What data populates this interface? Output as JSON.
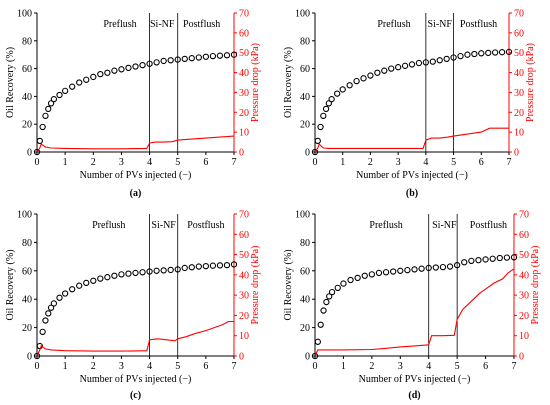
{
  "figure": {
    "left_axis_color": "#000000",
    "right_axis_color": "#ff0000"
  },
  "chart_data": [
    {
      "type": "line",
      "panel_label": "(a)",
      "xlabel": "Number of PVs injected (−)",
      "ylabel": "Oil Recovery (%)",
      "y2label": "Pressure drop (kPa)",
      "xlim": [
        0,
        7
      ],
      "ylim": [
        0,
        100
      ],
      "y2lim": [
        0,
        70
      ],
      "xticks": [
        "0",
        "1",
        "2",
        "3",
        "4",
        "5",
        "6",
        "7"
      ],
      "yticks": [
        "0",
        "20",
        "40",
        "60",
        "80",
        "100"
      ],
      "y2ticks": [
        "0",
        "10",
        "20",
        "30",
        "40",
        "50",
        "60",
        "70"
      ],
      "stage_boundaries": [
        4,
        5
      ],
      "stage_labels": [
        {
          "text": "Preflush",
          "x": 2.95
        },
        {
          "text": "Si-NF",
          "x": 4.45
        },
        {
          "text": "Postflush",
          "x": 5.85
        }
      ],
      "series": [
        {
          "axis": "left",
          "marker": "circle",
          "color": "#000000",
          "x": [
            0,
            0.1,
            0.2,
            0.3,
            0.4,
            0.5,
            0.6,
            0.8,
            1,
            1.25,
            1.5,
            1.75,
            2,
            2.25,
            2.5,
            2.75,
            3,
            3.25,
            3.5,
            3.75,
            4,
            4.25,
            4.5,
            4.75,
            5,
            5.25,
            5.5,
            5.75,
            6,
            6.25,
            6.5,
            6.75,
            7
          ],
          "y": [
            0,
            8,
            18,
            26,
            31,
            35,
            38,
            41,
            44,
            47,
            50,
            52,
            54,
            56,
            57,
            58.5,
            59.5,
            60.5,
            61.5,
            62.5,
            63.5,
            64.5,
            65.5,
            66,
            66.5,
            67,
            67.5,
            68,
            68.5,
            69,
            69.3,
            69.6,
            70
          ]
        },
        {
          "axis": "right",
          "marker": "line",
          "color": "#ff0000",
          "x": [
            0,
            0.1,
            0.15,
            0.3,
            0.5,
            1,
            2,
            3,
            3.5,
            3.9,
            4,
            4.2,
            4.5,
            4.8,
            5,
            5.5,
            6,
            6.5,
            7
          ],
          "y": [
            0,
            2,
            4,
            2.5,
            2,
            1.8,
            1.6,
            1.6,
            1.7,
            1.8,
            4.5,
            5,
            5,
            5.2,
            6,
            6.5,
            7,
            7.5,
            8
          ]
        }
      ]
    },
    {
      "type": "line",
      "panel_label": "(b)",
      "xlabel": "Number of PVs injected (−)",
      "ylabel": "Oil Recovery (%)",
      "y2label": "Pressure drop (kPa)",
      "xlim": [
        0,
        7
      ],
      "ylim": [
        0,
        100
      ],
      "y2lim": [
        0,
        70
      ],
      "xticks": [
        "0",
        "1",
        "2",
        "3",
        "4",
        "5",
        "6",
        "7"
      ],
      "yticks": [
        "0",
        "20",
        "40",
        "60",
        "80",
        "100"
      ],
      "y2ticks": [
        "0",
        "10",
        "20",
        "30",
        "40",
        "50",
        "60",
        "70"
      ],
      "stage_boundaries": [
        4,
        5
      ],
      "stage_labels": [
        {
          "text": "Preflush",
          "x": 2.85
        },
        {
          "text": "Si-NF",
          "x": 4.5
        },
        {
          "text": "Postflush",
          "x": 5.9
        }
      ],
      "series": [
        {
          "axis": "left",
          "marker": "circle",
          "color": "#000000",
          "x": [
            0,
            0.1,
            0.2,
            0.3,
            0.4,
            0.5,
            0.6,
            0.8,
            1,
            1.25,
            1.5,
            1.75,
            2,
            2.25,
            2.5,
            2.75,
            3,
            3.25,
            3.5,
            3.75,
            4,
            4.25,
            4.5,
            4.75,
            5,
            5.25,
            5.5,
            5.75,
            6,
            6.25,
            6.5,
            6.75,
            7
          ],
          "y": [
            0,
            8,
            18,
            26,
            31,
            35,
            38,
            42,
            45,
            48,
            51,
            53,
            55,
            57,
            58.5,
            60,
            61,
            62,
            63,
            64,
            64.5,
            65,
            66,
            67,
            68,
            69,
            70,
            70.5,
            71,
            71.3,
            71.6,
            71.8,
            72
          ]
        },
        {
          "axis": "right",
          "marker": "line",
          "color": "#ff0000",
          "x": [
            0,
            0.1,
            0.15,
            0.3,
            0.5,
            1,
            2,
            3,
            3.5,
            3.9,
            4,
            4.2,
            4.5,
            4.8,
            5,
            5.5,
            6,
            6.3,
            6.5,
            7
          ],
          "y": [
            0,
            2,
            4,
            2,
            1.8,
            1.8,
            1.8,
            1.8,
            1.8,
            1.8,
            6,
            7,
            7,
            7.5,
            8,
            9,
            10,
            12,
            12,
            12
          ]
        }
      ]
    },
    {
      "type": "line",
      "panel_label": "(c)",
      "xlabel": "Number of PVs injected (−)",
      "ylabel": "Oil Recovery (%)",
      "y2label": "Pressure drop (kPa)",
      "xlim": [
        0,
        7
      ],
      "ylim": [
        0,
        100
      ],
      "y2lim": [
        0,
        70
      ],
      "xticks": [
        "0",
        "1",
        "2",
        "3",
        "4",
        "5",
        "6",
        "7"
      ],
      "yticks": [
        "0",
        "20",
        "40",
        "60",
        "80",
        "100"
      ],
      "y2ticks": [
        "0",
        "10",
        "20",
        "30",
        "40",
        "50",
        "60",
        "70"
      ],
      "stage_boundaries": [
        4,
        5
      ],
      "stage_labels": [
        {
          "text": "Preflush",
          "x": 2.55
        },
        {
          "text": "Si-NF",
          "x": 4.5
        },
        {
          "text": "Postflush",
          "x": 6.0
        }
      ],
      "series": [
        {
          "axis": "left",
          "marker": "circle",
          "color": "#000000",
          "x": [
            0,
            0.1,
            0.2,
            0.3,
            0.4,
            0.5,
            0.6,
            0.8,
            1,
            1.25,
            1.5,
            1.75,
            2,
            2.25,
            2.5,
            2.75,
            3,
            3.25,
            3.5,
            3.75,
            4,
            4.25,
            4.5,
            4.75,
            5,
            5.25,
            5.5,
            5.75,
            6,
            6.25,
            6.5,
            6.75,
            7
          ],
          "y": [
            0,
            7,
            17,
            25,
            30,
            34,
            37,
            41,
            44,
            47,
            49.5,
            51.5,
            53,
            54.5,
            55.5,
            56.5,
            57.5,
            58,
            58.5,
            59,
            59.5,
            60,
            60.3,
            60.6,
            61,
            62,
            62.5,
            63,
            63.3,
            63.6,
            63.8,
            64,
            64.5
          ]
        },
        {
          "axis": "right",
          "marker": "line",
          "color": "#ff0000",
          "x": [
            0,
            0.1,
            0.15,
            0.3,
            0.5,
            1,
            2,
            3,
            3.5,
            3.9,
            4,
            4.3,
            4.6,
            4.9,
            5,
            5.3,
            5.6,
            6,
            6.3,
            6.6,
            6.8,
            7
          ],
          "y": [
            0,
            3,
            5,
            3.5,
            3,
            2.6,
            2.4,
            2.4,
            2.5,
            2.6,
            8,
            8.5,
            8,
            7.5,
            8.5,
            9.5,
            11,
            12.5,
            14,
            15.5,
            17,
            17
          ]
        }
      ]
    },
    {
      "type": "line",
      "panel_label": "(d)",
      "xlabel": "Number of PVs injected (−)",
      "ylabel": "Oil Recovery (%)",
      "y2label": "Pressure drop (kPa)",
      "xlim": [
        0,
        7
      ],
      "ylim": [
        0,
        100
      ],
      "y2lim": [
        0,
        70
      ],
      "xticks": [
        "0",
        "1",
        "2",
        "3",
        "4",
        "5",
        "6",
        "7"
      ],
      "yticks": [
        "0",
        "20",
        "40",
        "60",
        "80",
        "100"
      ],
      "y2ticks": [
        "0",
        "10",
        "20",
        "30",
        "40",
        "50",
        "60",
        "70"
      ],
      "stage_boundaries": [
        4,
        5
      ],
      "stage_labels": [
        {
          "text": "Preflush",
          "x": 2.5
        },
        {
          "text": "Si-NF",
          "x": 4.55
        },
        {
          "text": "Postflush",
          "x": 6.1
        }
      ],
      "series": [
        {
          "axis": "left",
          "marker": "circle",
          "color": "#000000",
          "x": [
            0,
            0.1,
            0.2,
            0.3,
            0.4,
            0.5,
            0.6,
            0.8,
            1,
            1.25,
            1.5,
            1.75,
            2,
            2.25,
            2.5,
            2.75,
            3,
            3.25,
            3.5,
            3.75,
            4,
            4.25,
            4.5,
            4.75,
            5,
            5.25,
            5.5,
            5.75,
            6,
            6.25,
            6.5,
            6.75,
            7
          ],
          "y": [
            0,
            10,
            22,
            32,
            38,
            42,
            45,
            48,
            51,
            53.5,
            55,
            56.5,
            57.5,
            58.5,
            59,
            59.5,
            60,
            60.5,
            61,
            61.5,
            62,
            62.3,
            62.6,
            63,
            64,
            66,
            67,
            67.5,
            68,
            68.5,
            69,
            69.3,
            69.5
          ]
        },
        {
          "axis": "right",
          "marker": "line",
          "color": "#ff0000",
          "x": [
            0,
            0.1,
            0.2,
            0.5,
            1,
            2,
            2.5,
            3,
            3.5,
            4,
            4.1,
            4.5,
            4.9,
            5,
            5.2,
            5.5,
            5.8,
            6,
            6.3,
            6.6,
            6.8,
            7
          ],
          "y": [
            0,
            3,
            3,
            3,
            3,
            3.2,
            3.8,
            4.5,
            5,
            5.5,
            10,
            10,
            10.2,
            18,
            23,
            27,
            31,
            33,
            36,
            38,
            41,
            43
          ]
        }
      ]
    }
  ]
}
